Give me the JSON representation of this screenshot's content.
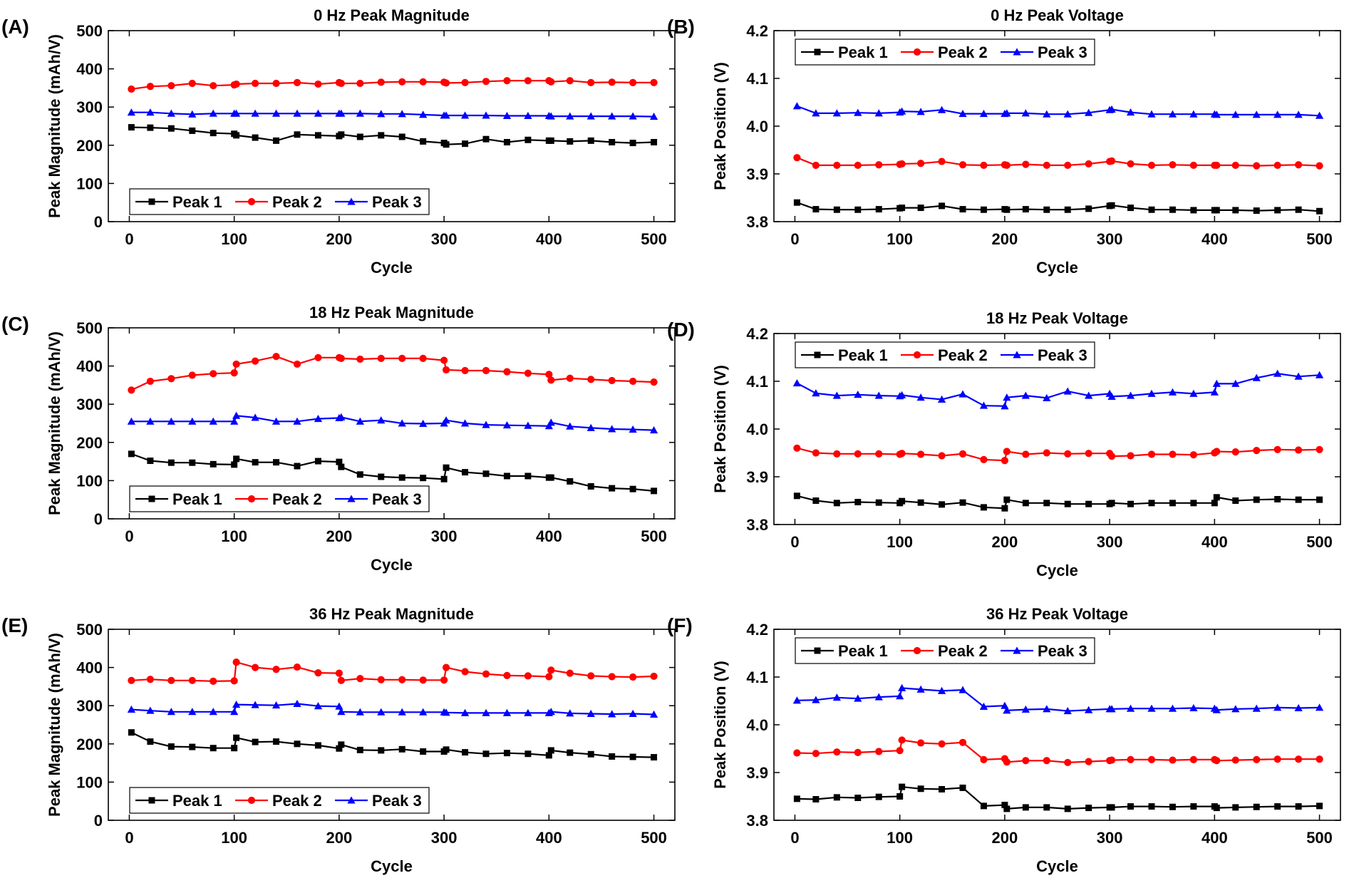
{
  "figure": {
    "description": "Six-panel figure of peak magnitude and peak voltage versus cycle number at 0 Hz, 18 Hz and 36 Hz"
  },
  "series_styles": {
    "Peak 1": {
      "color": "#000000",
      "marker": "square"
    },
    "Peak 2": {
      "color": "#ff0000",
      "marker": "circle"
    },
    "Peak 3": {
      "color": "#0000ff",
      "marker": "triangle"
    }
  },
  "chart_data": [
    {
      "id": "A",
      "panel_label": "(A)",
      "type": "line",
      "title": "0 Hz Peak Magnitude",
      "xlabel": "Cycle",
      "ylabel": "Peak Magnitude (mAh/V)",
      "xlim": [
        -20,
        520
      ],
      "ylim": [
        0,
        500
      ],
      "xticks": [
        0,
        100,
        200,
        300,
        400,
        500
      ],
      "yticks": [
        0,
        100,
        200,
        300,
        400,
        500
      ],
      "ytick_labels": [
        "0",
        "100",
        "200",
        "300",
        "400",
        "500"
      ],
      "legend_position": "bottom-left",
      "x": [
        2,
        20,
        40,
        60,
        80,
        100,
        102,
        120,
        140,
        160,
        180,
        200,
        202,
        220,
        240,
        260,
        280,
        300,
        302,
        320,
        340,
        360,
        380,
        400,
        402,
        420,
        440,
        460,
        480,
        500
      ],
      "series": [
        {
          "name": "Peak 1",
          "values": [
            247,
            246,
            244,
            238,
            232,
            230,
            226,
            220,
            212,
            228,
            226,
            224,
            228,
            222,
            226,
            222,
            210,
            206,
            202,
            204,
            216,
            208,
            214,
            212,
            212,
            210,
            212,
            208,
            206,
            208
          ]
        },
        {
          "name": "Peak 2",
          "values": [
            347,
            354,
            356,
            362,
            356,
            358,
            360,
            362,
            362,
            364,
            360,
            364,
            362,
            362,
            365,
            366,
            366,
            365,
            363,
            364,
            367,
            369,
            369,
            369,
            366,
            369,
            364,
            365,
            364,
            364
          ]
        },
        {
          "name": "Peak 3",
          "values": [
            286,
            286,
            283,
            281,
            283,
            283,
            283,
            283,
            283,
            283,
            283,
            283,
            283,
            283,
            282,
            282,
            280,
            278,
            278,
            278,
            278,
            277,
            277,
            277,
            276,
            276,
            276,
            276,
            276,
            275
          ]
        }
      ]
    },
    {
      "id": "B",
      "panel_label": "(B)",
      "type": "line",
      "title": "0 Hz Peak Voltage",
      "xlabel": "Cycle",
      "ylabel": "Peak Position (V)",
      "xlim": [
        -20,
        520
      ],
      "ylim": [
        3.8,
        4.2
      ],
      "xticks": [
        0,
        100,
        200,
        300,
        400,
        500
      ],
      "yticks": [
        3.8,
        3.9,
        4.0,
        4.1,
        4.2
      ],
      "ytick_labels": [
        "3.8",
        "3.9",
        "4.0",
        "4.1",
        "4.2"
      ],
      "legend_position": "top-left",
      "x": [
        2,
        20,
        40,
        60,
        80,
        100,
        102,
        120,
        140,
        160,
        180,
        200,
        202,
        220,
        240,
        260,
        280,
        300,
        302,
        320,
        340,
        360,
        380,
        400,
        402,
        420,
        440,
        460,
        480,
        500
      ],
      "series": [
        {
          "name": "Peak 1",
          "values": [
            3.84,
            3.826,
            3.825,
            3.825,
            3.826,
            3.828,
            3.829,
            3.829,
            3.833,
            3.826,
            3.825,
            3.826,
            3.825,
            3.826,
            3.825,
            3.825,
            3.827,
            3.833,
            3.834,
            3.829,
            3.825,
            3.825,
            3.824,
            3.824,
            3.824,
            3.824,
            3.823,
            3.824,
            3.825,
            3.822
          ]
        },
        {
          "name": "Peak 2",
          "values": [
            3.934,
            3.918,
            3.918,
            3.918,
            3.919,
            3.92,
            3.921,
            3.922,
            3.926,
            3.919,
            3.918,
            3.919,
            3.918,
            3.92,
            3.918,
            3.918,
            3.921,
            3.926,
            3.927,
            3.921,
            3.918,
            3.919,
            3.918,
            3.918,
            3.918,
            3.918,
            3.917,
            3.918,
            3.919,
            3.917
          ]
        },
        {
          "name": "Peak 3",
          "values": [
            4.042,
            4.027,
            4.027,
            4.028,
            4.027,
            4.029,
            4.031,
            4.03,
            4.034,
            4.026,
            4.026,
            4.026,
            4.027,
            4.027,
            4.025,
            4.025,
            4.028,
            4.034,
            4.035,
            4.029,
            4.025,
            4.025,
            4.025,
            4.025,
            4.024,
            4.024,
            4.024,
            4.024,
            4.024,
            4.022
          ]
        }
      ]
    },
    {
      "id": "C",
      "panel_label": "(C)",
      "type": "line",
      "title": "18 Hz Peak Magnitude",
      "xlabel": "Cycle",
      "ylabel": "Peak Magnitude (mAh/V)",
      "xlim": [
        -20,
        520
      ],
      "ylim": [
        0,
        500
      ],
      "xticks": [
        0,
        100,
        200,
        300,
        400,
        500
      ],
      "yticks": [
        0,
        100,
        200,
        300,
        400,
        500
      ],
      "ytick_labels": [
        "0",
        "100",
        "200",
        "300",
        "400",
        "500"
      ],
      "legend_position": "bottom-left",
      "x": [
        2,
        20,
        40,
        60,
        80,
        100,
        102,
        120,
        140,
        160,
        180,
        200,
        202,
        220,
        240,
        260,
        280,
        300,
        302,
        320,
        340,
        360,
        380,
        400,
        402,
        420,
        440,
        460,
        480,
        500
      ],
      "series": [
        {
          "name": "Peak 1",
          "values": [
            170,
            152,
            147,
            147,
            143,
            142,
            157,
            148,
            148,
            138,
            151,
            149,
            136,
            116,
            110,
            108,
            107,
            104,
            134,
            122,
            118,
            112,
            112,
            108,
            108,
            98,
            85,
            80,
            78,
            73
          ]
        },
        {
          "name": "Peak 2",
          "values": [
            337,
            360,
            367,
            376,
            380,
            382,
            405,
            413,
            425,
            405,
            422,
            422,
            420,
            418,
            420,
            420,
            420,
            415,
            390,
            388,
            388,
            385,
            381,
            378,
            363,
            368,
            365,
            362,
            360,
            358
          ]
        },
        {
          "name": "Peak 3",
          "values": [
            255,
            255,
            255,
            255,
            255,
            255,
            270,
            265,
            255,
            255,
            262,
            264,
            266,
            255,
            258,
            250,
            249,
            250,
            258,
            250,
            246,
            245,
            244,
            243,
            252,
            242,
            238,
            235,
            234,
            232
          ]
        }
      ]
    },
    {
      "id": "D",
      "panel_label": "(D)",
      "type": "line",
      "title": "18 Hz Peak Voltage",
      "xlabel": "Cycle",
      "ylabel": "Peak Position (V)",
      "xlim": [
        -20,
        520
      ],
      "ylim": [
        3.8,
        4.2
      ],
      "xticks": [
        0,
        100,
        200,
        300,
        400,
        500
      ],
      "yticks": [
        3.8,
        3.9,
        4.0,
        4.1,
        4.2
      ],
      "ytick_labels": [
        "3.8",
        "3.9",
        "4.0",
        "4.1",
        "4.2"
      ],
      "legend_position": "top-left",
      "x": [
        2,
        20,
        40,
        60,
        80,
        100,
        102,
        120,
        140,
        160,
        180,
        200,
        202,
        220,
        240,
        260,
        280,
        300,
        302,
        320,
        340,
        360,
        380,
        400,
        402,
        420,
        440,
        460,
        480,
        500
      ],
      "series": [
        {
          "name": "Peak 1",
          "values": [
            3.86,
            3.85,
            3.845,
            3.847,
            3.846,
            3.845,
            3.849,
            3.846,
            3.842,
            3.846,
            3.836,
            3.834,
            3.852,
            3.845,
            3.845,
            3.843,
            3.843,
            3.843,
            3.845,
            3.843,
            3.845,
            3.845,
            3.845,
            3.845,
            3.857,
            3.85,
            3.852,
            3.853,
            3.852,
            3.852
          ]
        },
        {
          "name": "Peak 2",
          "values": [
            3.96,
            3.95,
            3.948,
            3.948,
            3.948,
            3.947,
            3.949,
            3.947,
            3.944,
            3.948,
            3.936,
            3.934,
            3.953,
            3.947,
            3.95,
            3.948,
            3.949,
            3.949,
            3.943,
            3.944,
            3.947,
            3.947,
            3.946,
            3.95,
            3.953,
            3.952,
            3.955,
            3.957,
            3.956,
            3.957
          ]
        },
        {
          "name": "Peak 3",
          "values": [
            4.096,
            4.075,
            4.07,
            4.072,
            4.07,
            4.069,
            4.071,
            4.066,
            4.062,
            4.073,
            4.049,
            4.048,
            4.066,
            4.07,
            4.065,
            4.079,
            4.07,
            4.074,
            4.068,
            4.07,
            4.074,
            4.077,
            4.074,
            4.077,
            4.095,
            4.095,
            4.107,
            4.116,
            4.11,
            4.113
          ]
        }
      ]
    },
    {
      "id": "E",
      "panel_label": "(E)",
      "type": "line",
      "title": "36 Hz Peak Magnitude",
      "xlabel": "Cycle",
      "ylabel": "Peak Magnitude (mAh/V)",
      "xlim": [
        -20,
        520
      ],
      "ylim": [
        0,
        500
      ],
      "xticks": [
        0,
        100,
        200,
        300,
        400,
        500
      ],
      "yticks": [
        0,
        100,
        200,
        300,
        400,
        500
      ],
      "ytick_labels": [
        "0",
        "100",
        "200",
        "300",
        "400",
        "500"
      ],
      "legend_position": "bottom-left",
      "x": [
        2,
        20,
        40,
        60,
        80,
        100,
        102,
        120,
        140,
        160,
        180,
        200,
        202,
        220,
        240,
        260,
        280,
        300,
        302,
        320,
        340,
        360,
        380,
        400,
        402,
        420,
        440,
        460,
        480,
        500
      ],
      "series": [
        {
          "name": "Peak 1",
          "values": [
            230,
            206,
            193,
            192,
            189,
            189,
            216,
            205,
            206,
            200,
            196,
            188,
            198,
            184,
            183,
            186,
            180,
            180,
            185,
            178,
            174,
            176,
            174,
            170,
            183,
            177,
            173,
            167,
            166,
            165
          ]
        },
        {
          "name": "Peak 2",
          "values": [
            366,
            369,
            366,
            366,
            364,
            365,
            414,
            400,
            395,
            401,
            386,
            385,
            366,
            371,
            368,
            368,
            367,
            367,
            400,
            389,
            383,
            379,
            378,
            376,
            393,
            385,
            378,
            376,
            375,
            377
          ]
        },
        {
          "name": "Peak 3",
          "values": [
            290,
            287,
            284,
            284,
            284,
            284,
            303,
            302,
            301,
            305,
            299,
            298,
            284,
            283,
            283,
            283,
            283,
            283,
            282,
            281,
            281,
            281,
            281,
            281,
            284,
            280,
            279,
            278,
            279,
            277
          ]
        }
      ]
    },
    {
      "id": "F",
      "panel_label": "(F)",
      "type": "line",
      "title": "36 Hz Peak Voltage",
      "xlabel": "Cycle",
      "ylabel": "Peak Position (V)",
      "xlim": [
        -20,
        520
      ],
      "ylim": [
        3.8,
        4.2
      ],
      "xticks": [
        0,
        100,
        200,
        300,
        400,
        500
      ],
      "yticks": [
        3.8,
        3.9,
        4.0,
        4.1,
        4.2
      ],
      "ytick_labels": [
        "3.8",
        "3.9",
        "4.0",
        "4.1",
        "4.2"
      ],
      "legend_position": "top-left",
      "x": [
        2,
        20,
        40,
        60,
        80,
        100,
        102,
        120,
        140,
        160,
        180,
        200,
        202,
        220,
        240,
        260,
        280,
        300,
        302,
        320,
        340,
        360,
        380,
        400,
        402,
        420,
        440,
        460,
        480,
        500
      ],
      "series": [
        {
          "name": "Peak 1",
          "values": [
            3.845,
            3.844,
            3.848,
            3.847,
            3.849,
            3.85,
            3.87,
            3.866,
            3.865,
            3.868,
            3.83,
            3.832,
            3.824,
            3.827,
            3.827,
            3.824,
            3.826,
            3.827,
            3.827,
            3.829,
            3.829,
            3.828,
            3.829,
            3.829,
            3.826,
            3.827,
            3.828,
            3.829,
            3.829,
            3.83
          ]
        },
        {
          "name": "Peak 2",
          "values": [
            3.941,
            3.94,
            3.943,
            3.942,
            3.944,
            3.946,
            3.968,
            3.962,
            3.96,
            3.963,
            3.927,
            3.929,
            3.922,
            3.925,
            3.925,
            3.921,
            3.923,
            3.925,
            3.926,
            3.927,
            3.927,
            3.926,
            3.927,
            3.927,
            3.925,
            3.926,
            3.927,
            3.928,
            3.928,
            3.928
          ]
        },
        {
          "name": "Peak 3",
          "values": [
            4.051,
            4.052,
            4.057,
            4.055,
            4.058,
            4.06,
            4.077,
            4.074,
            4.071,
            4.073,
            4.038,
            4.04,
            4.03,
            4.032,
            4.033,
            4.029,
            4.031,
            4.033,
            4.033,
            4.034,
            4.034,
            4.034,
            4.035,
            4.034,
            4.031,
            4.033,
            4.034,
            4.036,
            4.035,
            4.036
          ]
        }
      ]
    }
  ]
}
